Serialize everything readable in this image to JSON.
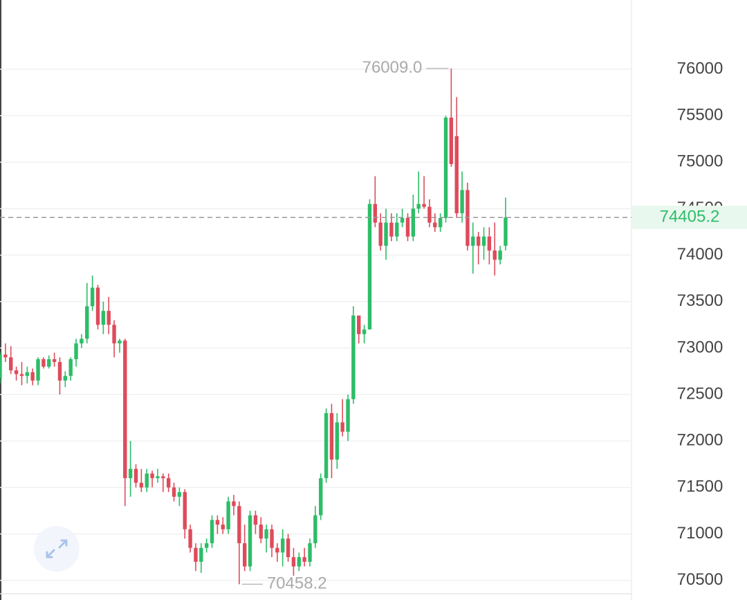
{
  "chart_data": {
    "type": "candlestick",
    "up_color": "#2dbd67",
    "down_color": "#de4b5b",
    "grid": true,
    "ylim": [
      70289,
      76745
    ],
    "yticks": [
      70500,
      71000,
      71500,
      72000,
      72500,
      73000,
      73500,
      74000,
      74500,
      75000,
      75500,
      76000
    ],
    "open": [
      72680,
      72930,
      72900,
      72760,
      72720,
      72700,
      72740,
      72650,
      72880,
      72800,
      72880,
      72850,
      72650,
      72700,
      72880,
      73050,
      73100,
      73450,
      73650,
      73250,
      73400,
      73250,
      73050,
      73080,
      71600,
      71700,
      71550,
      71500,
      71650,
      71600,
      71620,
      71600,
      71500,
      71400,
      71450,
      71050,
      70850,
      70700,
      70850,
      70900,
      71150,
      71100,
      71050,
      71350,
      71300,
      70900,
      70650,
      71200,
      71100,
      70950,
      71050,
      70850,
      70800,
      70950,
      70750,
      70650,
      70750,
      70700,
      70900,
      71200,
      71600,
      72300,
      71800,
      72200,
      72100,
      72450,
      73350,
      73150,
      73200,
      74550,
      74350,
      74100,
      74350,
      74200,
      74350,
      74400,
      74200,
      74500,
      74550,
      74520,
      74350,
      74300,
      74400,
      75480,
      75280,
      74450,
      74700,
      74100,
      74200,
      74100,
      74200,
      74050,
      73950,
      74100
    ],
    "high": [
      72960,
      73050,
      73020,
      72800,
      72850,
      72800,
      72780,
      72900,
      72900,
      72920,
      72950,
      72900,
      72750,
      72900,
      73100,
      73150,
      73700,
      73780,
      73680,
      73500,
      73550,
      73300,
      73100,
      73100,
      72000,
      71750,
      71700,
      71700,
      71680,
      71700,
      71650,
      71650,
      71550,
      71500,
      71480,
      71100,
      70900,
      70900,
      70950,
      71200,
      71200,
      71180,
      71400,
      71420,
      71350,
      71100,
      71250,
      71250,
      71180,
      71100,
      71100,
      70900,
      71050,
      71000,
      70850,
      70800,
      70850,
      70950,
      71300,
      71650,
      72350,
      72400,
      72300,
      72450,
      72500,
      73450,
      73350,
      73250,
      74600,
      74850,
      74450,
      74500,
      74450,
      74450,
      74500,
      74450,
      74650,
      74900,
      74850,
      74600,
      74450,
      74450,
      75500,
      76009.0,
      75700,
      74900,
      74780,
      74350,
      74250,
      74300,
      74300,
      74350,
      74100,
      74620
    ],
    "low": [
      72620,
      72850,
      72720,
      72650,
      72600,
      72620,
      72600,
      72600,
      72780,
      72780,
      72800,
      72500,
      72580,
      72650,
      72800,
      73000,
      73050,
      73400,
      73200,
      73150,
      73150,
      72900,
      72950,
      71300,
      71400,
      71500,
      71450,
      71450,
      71500,
      71550,
      71450,
      71450,
      71350,
      71300,
      70950,
      70800,
      70600,
      70580,
      70800,
      70850,
      71000,
      71000,
      71000,
      71200,
      70458.2,
      70600,
      70600,
      71000,
      70900,
      70800,
      70750,
      70700,
      70650,
      70700,
      70550,
      70600,
      70650,
      70650,
      70850,
      71150,
      71550,
      71600,
      71700,
      72050,
      72000,
      72400,
      73050,
      73050,
      73200,
      74300,
      74050,
      73950,
      74150,
      74150,
      74300,
      74150,
      74150,
      74450,
      74500,
      74300,
      74250,
      74250,
      74350,
      74950,
      74400,
      74350,
      74050,
      73800,
      73900,
      73950,
      73900,
      73780,
      73900,
      74050
    ],
    "close": [
      72930,
      72900,
      72760,
      72720,
      72700,
      72740,
      72650,
      72880,
      72800,
      72880,
      72850,
      72650,
      72700,
      72880,
      73050,
      73100,
      73450,
      73650,
      73250,
      73400,
      73250,
      73050,
      73080,
      71600,
      71700,
      71550,
      71500,
      71650,
      71600,
      71620,
      71600,
      71500,
      71400,
      71450,
      71050,
      70850,
      70700,
      70850,
      70900,
      71150,
      71100,
      71050,
      71350,
      71300,
      70900,
      70650,
      71200,
      71100,
      70950,
      71050,
      70850,
      70800,
      70950,
      70750,
      70650,
      70750,
      70700,
      70900,
      71200,
      71600,
      72300,
      71800,
      72200,
      72100,
      72450,
      73350,
      73150,
      73200,
      74550,
      74350,
      74100,
      74350,
      74200,
      74350,
      74400,
      74200,
      74500,
      74550,
      74520,
      74350,
      74300,
      74400,
      75480,
      74980,
      74450,
      74700,
      74100,
      74200,
      74100,
      74200,
      74050,
      73950,
      74050,
      74405.2
    ],
    "high_marker": {
      "value": 76009.0,
      "label": "76009.0"
    },
    "low_marker": {
      "value": 70458.2,
      "label": "70458.2"
    },
    "last_price": {
      "value": 74405.2,
      "label": "74405.2"
    }
  }
}
